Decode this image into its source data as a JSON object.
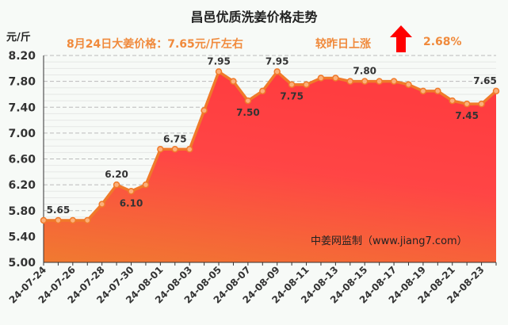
{
  "title": "昌邑优质洗姜价格走势",
  "unit": "元/斤",
  "price_note": "8月24日大姜价格：7.65元/斤左右",
  "change_label": "较昨日上涨",
  "change_value": "2.68%",
  "up_arrow_color": "#ff0000",
  "watermark": "中姜网监制（www.jiang7.com）",
  "chart_data": {
    "type": "area",
    "title": "昌邑优质洗姜价格走势",
    "ylabel": "元/斤",
    "ylim": [
      5.0,
      8.2
    ],
    "yticks": [
      "5.00",
      "5.40",
      "5.80",
      "6.20",
      "6.60",
      "7.00",
      "7.40",
      "7.80",
      "8.20"
    ],
    "x": [
      "24-07-24",
      "24-07-25",
      "24-07-26",
      "24-07-27",
      "24-07-28",
      "24-07-29",
      "24-07-30",
      "24-07-31",
      "24-08-01",
      "24-08-02",
      "24-08-03",
      "24-08-04",
      "24-08-05",
      "24-08-06",
      "24-08-07",
      "24-08-08",
      "24-08-09",
      "24-08-10",
      "24-08-11",
      "24-08-12",
      "24-08-13",
      "24-08-14",
      "24-08-15",
      "24-08-16",
      "24-08-17",
      "24-08-18",
      "24-08-19",
      "24-08-20",
      "24-08-21",
      "24-08-22",
      "24-08-23",
      "24-08-24"
    ],
    "xtick_labels": [
      "24-07-24",
      "24-07-26",
      "24-07-28",
      "24-07-30",
      "24-08-01",
      "24-08-03",
      "24-08-05",
      "24-08-07",
      "24-08-09",
      "24-08-11",
      "24-08-13",
      "24-08-15",
      "24-08-17",
      "24-08-19",
      "24-08-21",
      "24-08-23"
    ],
    "values": [
      5.65,
      5.65,
      5.65,
      5.65,
      5.9,
      6.2,
      6.1,
      6.2,
      6.75,
      6.75,
      6.75,
      7.35,
      7.95,
      7.8,
      7.5,
      7.65,
      7.95,
      7.75,
      7.75,
      7.85,
      7.85,
      7.8,
      7.8,
      7.8,
      7.8,
      7.75,
      7.65,
      7.65,
      7.5,
      7.45,
      7.45,
      7.65
    ],
    "data_labels": [
      {
        "index": 1,
        "text": "5.65",
        "pos": "above"
      },
      {
        "index": 5,
        "text": "6.20",
        "pos": "above"
      },
      {
        "index": 6,
        "text": "6.10",
        "pos": "below"
      },
      {
        "index": 9,
        "text": "6.75",
        "pos": "above"
      },
      {
        "index": 12,
        "text": "7.95",
        "pos": "above"
      },
      {
        "index": 14,
        "text": "7.50",
        "pos": "below"
      },
      {
        "index": 16,
        "text": "7.95",
        "pos": "above"
      },
      {
        "index": 17,
        "text": "7.75",
        "pos": "below"
      },
      {
        "index": 22,
        "text": "7.80",
        "pos": "above"
      },
      {
        "index": 29,
        "text": "7.45",
        "pos": "below"
      },
      {
        "index": 31,
        "text": "7.65",
        "pos": "above"
      }
    ],
    "line_color": "#f07a2a",
    "grid": true
  }
}
